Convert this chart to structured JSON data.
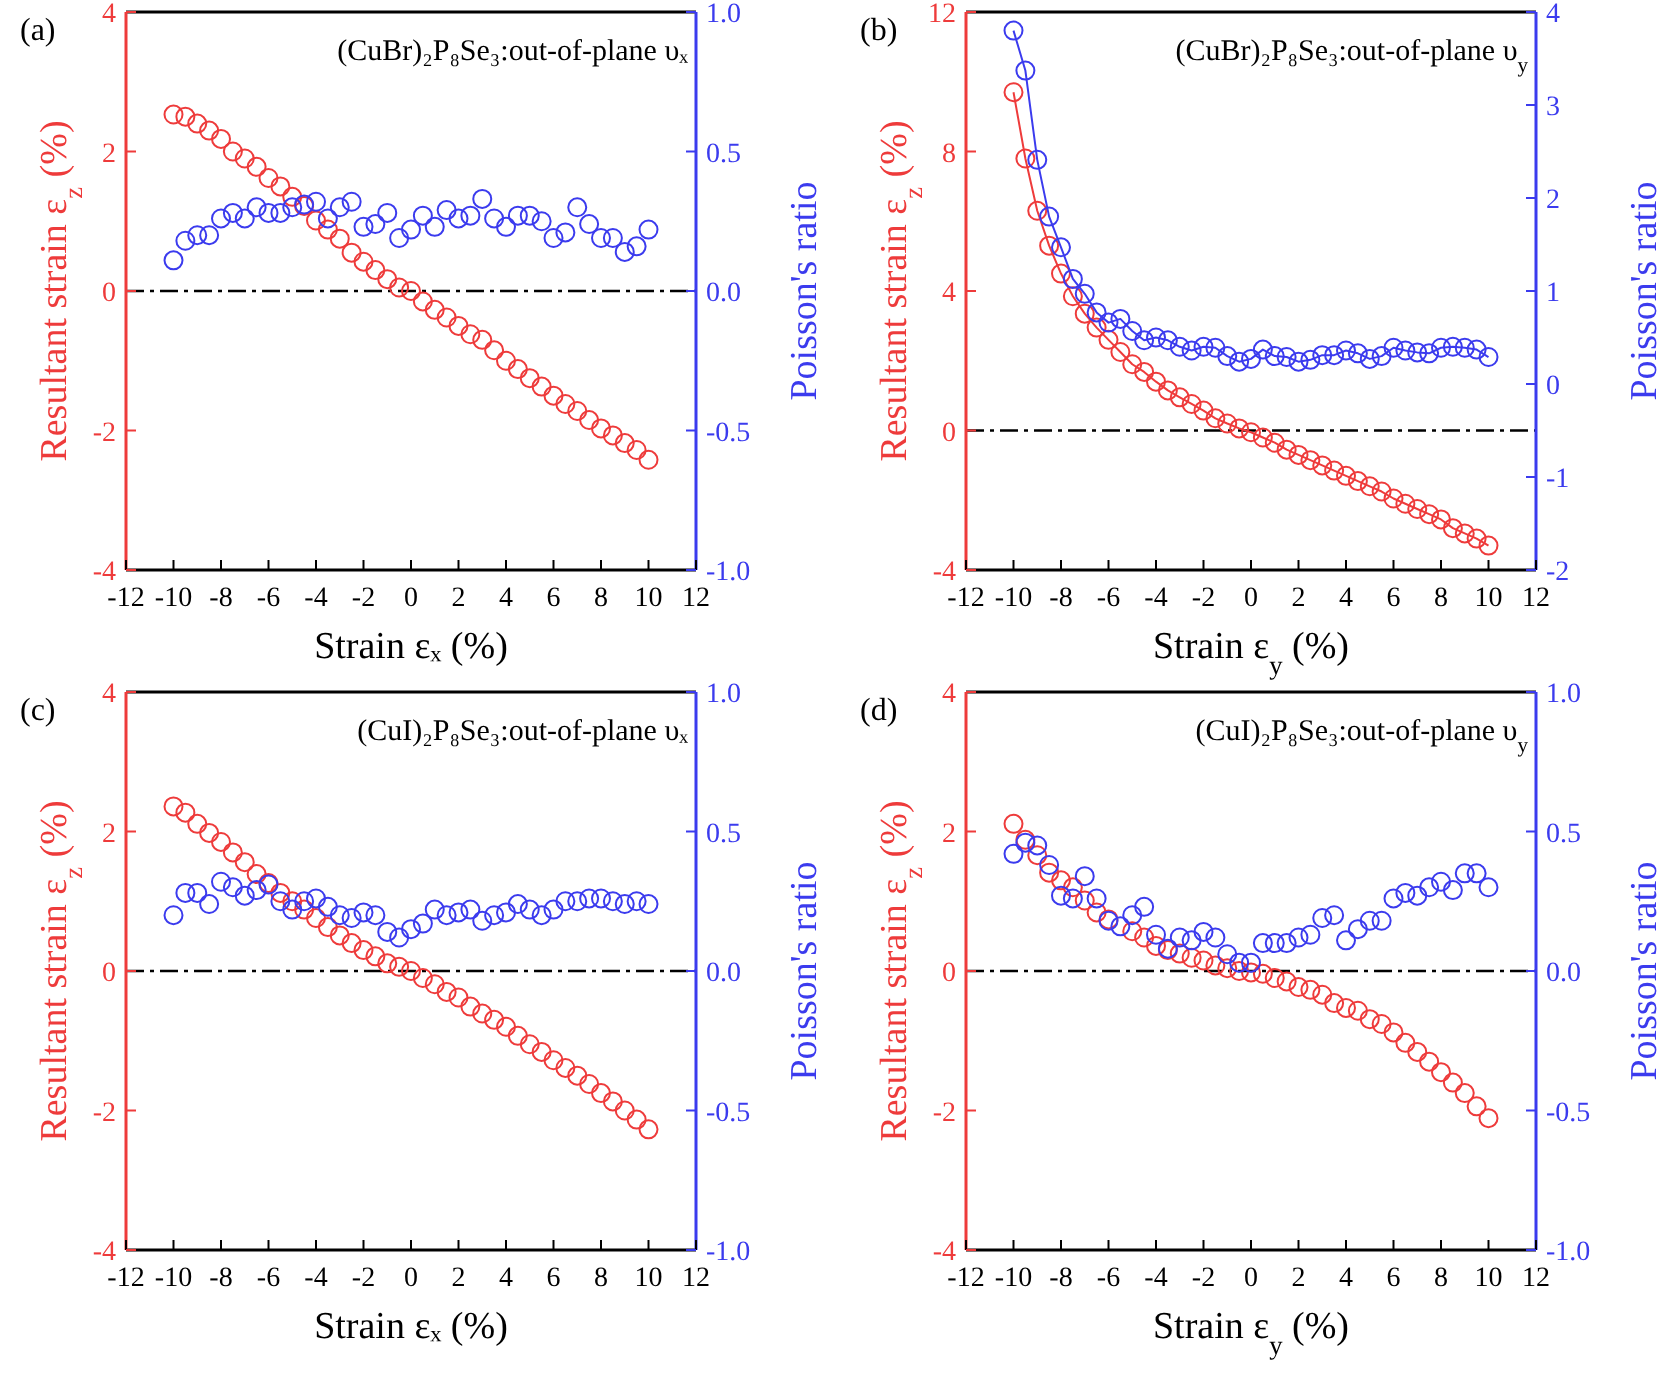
{
  "chart_data": [
    {
      "type": "scatter",
      "title": "(CuBr)₂P₈Se₃:out-of-plane υₓ",
      "xlabel": "Strain εₓ (%)",
      "ylabel": "Resultant strain ε$_{z}$ (%)",
      "y2label": "Poisson's ratio",
      "annotations": [
        "(a)"
      ],
      "marker": "circle",
      "x": [
        -10,
        -9.5,
        -9,
        -8.5,
        -8,
        -7.5,
        -7,
        -6.5,
        -6,
        -5.5,
        -5,
        -4.5,
        -4,
        -3.5,
        -3,
        -2.5,
        -2,
        -1.5,
        -1,
        -0.5,
        0,
        0.5,
        1,
        1.5,
        2,
        2.5,
        3,
        3.5,
        4,
        4.5,
        5,
        5.5,
        6,
        6.5,
        7,
        7.5,
        8,
        8.5,
        9,
        9.5,
        10
      ],
      "xlim": [
        -12,
        12
      ],
      "xticks": [
        -12,
        -10,
        -8,
        -6,
        -4,
        -2,
        0,
        2,
        4,
        6,
        8,
        10,
        12
      ],
      "ylim": [
        -4,
        4
      ],
      "yticks": [
        -4,
        -2,
        0,
        2,
        4
      ],
      "y2lim": [
        -1,
        1
      ],
      "y2ticks": [
        {
          "value": -1,
          "label": "-1.0"
        },
        {
          "value": -0.5,
          "label": "-0.5"
        },
        {
          "value": 0,
          "label": "0.0"
        },
        {
          "value": 0.5,
          "label": "0.5"
        },
        {
          "value": 1,
          "label": "1.0"
        }
      ],
      "ref_lines": [
        {
          "axis": "y",
          "value": 0,
          "color": "#000000",
          "line_style": "dashdot"
        }
      ],
      "series": [
        {
          "color": "#ee3b3b",
          "values": [
            2.53,
            2.5,
            2.4,
            2.3,
            2.18,
            2.0,
            1.9,
            1.78,
            1.62,
            1.5,
            1.35,
            1.22,
            1.01,
            0.88,
            0.75,
            0.55,
            0.42,
            0.3,
            0.17,
            0.05,
            0,
            -0.15,
            -0.27,
            -0.38,
            -0.5,
            -0.62,
            -0.7,
            -0.85,
            -1.0,
            -1.12,
            -1.25,
            -1.37,
            -1.5,
            -1.62,
            -1.72,
            -1.85,
            -1.97,
            -2.07,
            -2.18,
            -2.28,
            -2.42
          ]
        },
        {
          "color": "#3b3bee",
          "axis": "y2",
          "values": [
            0.11,
            0.18,
            0.2,
            0.2,
            0.26,
            0.28,
            0.26,
            0.3,
            0.28,
            0.28,
            0.3,
            0.31,
            0.32,
            0.26,
            0.3,
            0.32,
            0.23,
            0.24,
            0.28,
            0.19,
            0.22,
            0.27,
            0.23,
            0.29,
            0.26,
            0.27,
            0.33,
            0.26,
            0.23,
            0.27,
            0.27,
            0.25,
            0.19,
            0.21,
            0.3,
            0.24,
            0.19,
            0.19,
            0.14,
            0.16,
            0.22
          ]
        }
      ]
    },
    {
      "type": "line",
      "title": "(CuBr)₂P₈Se₃:out-of-plane υ$_{y}$",
      "xlabel": "Strain ε$_{y}$ (%)",
      "ylabel": "Resultant strain ε$_{z}$ (%)",
      "y2label": "Poisson's ratio",
      "annotations": [
        "(b)"
      ],
      "marker": "circle",
      "x": [
        -10,
        -9.5,
        -9,
        -8.5,
        -8,
        -7.5,
        -7,
        -6.5,
        -6,
        -5.5,
        -5,
        -4.5,
        -4,
        -3.5,
        -3,
        -2.5,
        -2,
        -1.5,
        -1,
        -0.5,
        0,
        0.5,
        1,
        1.5,
        2,
        2.5,
        3,
        3.5,
        4,
        4.5,
        5,
        5.5,
        6,
        6.5,
        7,
        7.5,
        8,
        8.5,
        9,
        9.5,
        10
      ],
      "xlim": [
        -12,
        12
      ],
      "xticks": [
        -12,
        -10,
        -8,
        -6,
        -4,
        -2,
        0,
        2,
        4,
        6,
        8,
        10,
        12
      ],
      "ylim": [
        -4,
        12
      ],
      "yticks": [
        -4,
        0,
        4,
        8,
        12
      ],
      "y2lim": [
        -2,
        4
      ],
      "y2ticks": [
        -2,
        -1,
        0,
        1,
        2,
        3,
        4
      ],
      "ref_lines": [
        {
          "axis": "y",
          "value": 0,
          "color": "#000000",
          "line_style": "dashdot"
        }
      ],
      "series": [
        {
          "color": "#ee3b3b",
          "values": [
            9.7,
            7.8,
            6.3,
            5.3,
            4.5,
            3.85,
            3.35,
            2.95,
            2.6,
            2.25,
            1.9,
            1.68,
            1.4,
            1.15,
            0.95,
            0.76,
            0.57,
            0.35,
            0.2,
            0.06,
            -0.05,
            -0.2,
            -0.35,
            -0.55,
            -0.7,
            -0.85,
            -1.0,
            -1.15,
            -1.3,
            -1.45,
            -1.6,
            -1.75,
            -1.95,
            -2.1,
            -2.25,
            -2.4,
            -2.55,
            -2.8,
            -2.95,
            -3.1,
            -3.3
          ]
        },
        {
          "color": "#3b3bee",
          "axis": "y2",
          "values": [
            3.8,
            3.37,
            2.41,
            1.8,
            1.47,
            1.13,
            0.97,
            0.77,
            0.66,
            0.7,
            0.57,
            0.47,
            0.5,
            0.47,
            0.4,
            0.36,
            0.4,
            0.39,
            0.3,
            0.24,
            0.27,
            0.37,
            0.3,
            0.29,
            0.24,
            0.26,
            0.31,
            0.31,
            0.36,
            0.33,
            0.27,
            0.3,
            0.39,
            0.36,
            0.34,
            0.33,
            0.39,
            0.4,
            0.39,
            0.37,
            0.29
          ]
        }
      ]
    },
    {
      "type": "scatter",
      "title": "(CuI)₂P₈Se₃:out-of-plane υₓ",
      "xlabel": "Strain εₓ (%)",
      "ylabel": "Resultant strain ε$_{z}$ (%)",
      "y2label": "Poisson's ratio",
      "annotations": [
        "(c)"
      ],
      "marker": "circle",
      "x": [
        -10,
        -9.5,
        -9,
        -8.5,
        -8,
        -7.5,
        -7,
        -6.5,
        -6,
        -5.5,
        -5,
        -4.5,
        -4,
        -3.5,
        -3,
        -2.5,
        -2,
        -1.5,
        -1,
        -0.5,
        0,
        0.5,
        1,
        1.5,
        2,
        2.5,
        3,
        3.5,
        4,
        4.5,
        5,
        5.5,
        6,
        6.5,
        7,
        7.5,
        8,
        8.5,
        9,
        9.5,
        10
      ],
      "xlim": [
        -12,
        12
      ],
      "xticks": [
        -12,
        -10,
        -8,
        -6,
        -4,
        -2,
        0,
        2,
        4,
        6,
        8,
        10,
        12
      ],
      "ylim": [
        -4,
        4
      ],
      "yticks": [
        -4,
        -2,
        0,
        2,
        4
      ],
      "y2lim": [
        -1,
        1
      ],
      "y2ticks": [
        {
          "value": -1,
          "label": "-1.0"
        },
        {
          "value": -0.5,
          "label": "-0.5"
        },
        {
          "value": 0,
          "label": "0.0"
        },
        {
          "value": 0.5,
          "label": "0.5"
        },
        {
          "value": 1,
          "label": "1.0"
        }
      ],
      "ref_lines": [
        {
          "axis": "y",
          "value": 0,
          "color": "#000000",
          "line_style": "dashdot"
        }
      ],
      "series": [
        {
          "color": "#ee3b3b",
          "values": [
            2.36,
            2.27,
            2.11,
            1.98,
            1.85,
            1.7,
            1.56,
            1.39,
            1.26,
            1.12,
            1.0,
            0.88,
            0.76,
            0.63,
            0.51,
            0.4,
            0.3,
            0.21,
            0.11,
            0.06,
            0,
            -0.1,
            -0.19,
            -0.3,
            -0.38,
            -0.51,
            -0.61,
            -0.7,
            -0.8,
            -0.93,
            -1.05,
            -1.16,
            -1.28,
            -1.39,
            -1.5,
            -1.62,
            -1.75,
            -1.87,
            -2.0,
            -2.13,
            -2.27
          ]
        },
        {
          "color": "#3b3bee",
          "axis": "y2",
          "values": [
            0.2,
            0.28,
            0.28,
            0.24,
            0.32,
            0.3,
            0.27,
            0.29,
            0.31,
            0.25,
            0.22,
            0.25,
            0.26,
            0.23,
            0.2,
            0.19,
            0.21,
            0.2,
            0.14,
            0.12,
            0.15,
            0.17,
            0.22,
            0.2,
            0.21,
            0.22,
            0.18,
            0.2,
            0.21,
            0.24,
            0.22,
            0.2,
            0.22,
            0.25,
            0.25,
            0.26,
            0.26,
            0.25,
            0.24,
            0.25,
            0.24
          ]
        }
      ]
    },
    {
      "type": "scatter",
      "title": "(CuI)₂P₈Se₃:out-of-plane υ$_{y}$",
      "xlabel": "Strain ε$_{y}$ (%)",
      "ylabel": "Resultant strain ε$_{z}$ (%)",
      "y2label": "Poisson's ratio",
      "annotations": [
        "(d)"
      ],
      "marker": "circle",
      "x": [
        -10,
        -9.5,
        -9,
        -8.5,
        -8,
        -7.5,
        -7,
        -6.5,
        -6,
        -5.5,
        -5,
        -4.5,
        -4,
        -3.5,
        -3,
        -2.5,
        -2,
        -1.5,
        -1,
        -0.5,
        0,
        0.5,
        1,
        1.5,
        2,
        2.5,
        3,
        3.5,
        4,
        4.5,
        5,
        5.5,
        6,
        6.5,
        7,
        7.5,
        8,
        8.5,
        9,
        9.5,
        10
      ],
      "xlim": [
        -12,
        12
      ],
      "xticks": [
        -12,
        -10,
        -8,
        -6,
        -4,
        -2,
        0,
        2,
        4,
        6,
        8,
        10,
        12
      ],
      "ylim": [
        -4,
        4
      ],
      "yticks": [
        -4,
        -2,
        0,
        2,
        4
      ],
      "y2lim": [
        -1,
        1
      ],
      "y2ticks": [
        {
          "value": -1,
          "label": "-1.0"
        },
        {
          "value": -0.5,
          "label": "-0.5"
        },
        {
          "value": 0,
          "label": "0.0"
        },
        {
          "value": 0.5,
          "label": "0.5"
        },
        {
          "value": 1,
          "label": "1.0"
        }
      ],
      "ref_lines": [
        {
          "axis": "y",
          "value": 0,
          "color": "#000000",
          "line_style": "dashdot"
        }
      ],
      "series": [
        {
          "color": "#ee3b3b",
          "values": [
            2.11,
            1.88,
            1.66,
            1.41,
            1.3,
            1.2,
            1.01,
            0.84,
            0.74,
            null,
            0.57,
            0.48,
            0.36,
            0.3,
            0.25,
            0.19,
            0.15,
            0.08,
            0.04,
            0,
            -0.02,
            -0.04,
            -0.1,
            -0.15,
            -0.23,
            -0.27,
            -0.34,
            -0.46,
            -0.53,
            -0.57,
            -0.69,
            -0.76,
            -0.88,
            -1.03,
            -1.16,
            -1.3,
            -1.45,
            -1.6,
            -1.75,
            -1.94,
            -2.11
          ]
        },
        {
          "color": "#3b3bee",
          "axis": "y2",
          "values": [
            0.42,
            0.46,
            0.45,
            0.38,
            0.27,
            0.26,
            0.34,
            0.26,
            0.18,
            0.16,
            0.2,
            0.23,
            0.13,
            0.08,
            0.12,
            0.11,
            0.14,
            0.12,
            0.06,
            0.03,
            0.03,
            0.1,
            0.1,
            0.1,
            0.12,
            0.13,
            0.19,
            0.2,
            0.11,
            0.15,
            0.18,
            0.18,
            0.26,
            0.28,
            0.27,
            0.3,
            0.32,
            0.29,
            0.35,
            0.35,
            0.3
          ]
        }
      ]
    }
  ]
}
